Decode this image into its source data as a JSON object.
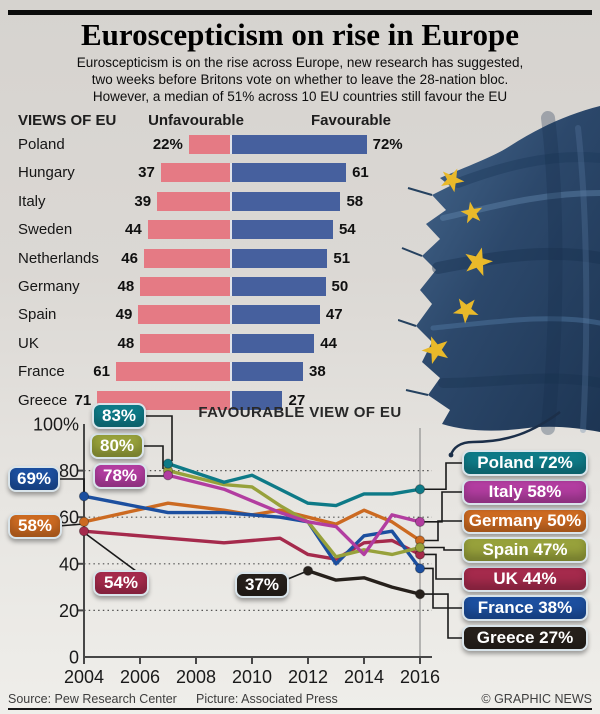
{
  "header": {
    "title": "Euroscepticism on rise in Europe",
    "intro_lines": [
      "Euroscepticism is on the rise across Europe, new research has suggested,",
      "two weeks before Britons vote on whether to leave the 28-nation bloc.",
      "However, a median of 51% across 10 EU countries still favour the EU"
    ]
  },
  "chart_data": [
    {
      "type": "bar",
      "heading": "VIEWS OF EU",
      "col_unfavourable": "Unfavourable",
      "col_favourable": "Favourable",
      "orientation": "diverging-horizontal",
      "unfavourable_color": "#e57a84",
      "favourable_color": "#46609e",
      "categories": [
        "Poland",
        "Hungary",
        "Italy",
        "Sweden",
        "Netherlands",
        "Germany",
        "Spain",
        "UK",
        "France",
        "Greece"
      ],
      "rows": [
        {
          "country": "Poland",
          "unfavourable": 22,
          "favourable": 72,
          "unfavourable_label": "22%",
          "favourable_label": "72%"
        },
        {
          "country": "Hungary",
          "unfavourable": 37,
          "favourable": 61,
          "unfavourable_label": "37",
          "favourable_label": "61"
        },
        {
          "country": "Italy",
          "unfavourable": 39,
          "favourable": 58,
          "unfavourable_label": "39",
          "favourable_label": "58"
        },
        {
          "country": "Sweden",
          "unfavourable": 44,
          "favourable": 54,
          "unfavourable_label": "44",
          "favourable_label": "54"
        },
        {
          "country": "Netherlands",
          "unfavourable": 46,
          "favourable": 51,
          "unfavourable_label": "46",
          "favourable_label": "51"
        },
        {
          "country": "Germany",
          "unfavourable": 48,
          "favourable": 50,
          "unfavourable_label": "48",
          "favourable_label": "50"
        },
        {
          "country": "Spain",
          "unfavourable": 49,
          "favourable": 47,
          "unfavourable_label": "49",
          "favourable_label": "47"
        },
        {
          "country": "UK",
          "unfavourable": 48,
          "favourable": 44,
          "unfavourable_label": "48",
          "favourable_label": "44"
        },
        {
          "country": "France",
          "unfavourable": 61,
          "favourable": 38,
          "unfavourable_label": "61",
          "favourable_label": "38"
        },
        {
          "country": "Greece",
          "unfavourable": 71,
          "favourable": 27,
          "unfavourable_label": "71",
          "favourable_label": "27"
        }
      ]
    },
    {
      "type": "line",
      "title": "FAVOURABLE VIEW OF EU",
      "xlabel": "",
      "ylabel": "",
      "x_ticks": [
        2004,
        2006,
        2008,
        2010,
        2012,
        2014,
        2016
      ],
      "xlim": [
        2004,
        2016
      ],
      "ylim": [
        0,
        100
      ],
      "y_ticks": [
        0,
        20,
        40,
        60,
        80,
        100
      ],
      "y_tick_labels": [
        "0",
        "20",
        "40",
        "60",
        "80",
        "100%"
      ],
      "grid": "dotted-horizontal-20-40-60-80",
      "legend_position": "callouts-left-and-right",
      "series": [
        {
          "name": "UK",
          "color": "#a52a4c",
          "start_label": "54%",
          "end_label": "UK 44%",
          "points": [
            [
              2004,
              54
            ],
            [
              2007,
              51
            ],
            [
              2009,
              49
            ],
            [
              2010,
              50
            ],
            [
              2011,
              51
            ],
            [
              2012,
              44
            ],
            [
              2013,
              42
            ],
            [
              2014,
              49
            ],
            [
              2015,
              50
            ],
            [
              2016,
              44
            ]
          ]
        },
        {
          "name": "Germany",
          "color": "#cc6a21",
          "start_label": "58%",
          "end_label": "Germany 50%",
          "points": [
            [
              2004,
              58
            ],
            [
              2007,
              66
            ],
            [
              2009,
              63
            ],
            [
              2010,
              61
            ],
            [
              2011,
              63
            ],
            [
              2012,
              60
            ],
            [
              2013,
              57
            ],
            [
              2014,
              63
            ],
            [
              2015,
              58
            ],
            [
              2016,
              50
            ]
          ]
        },
        {
          "name": "France",
          "color": "#1c4f9f",
          "start_label": "69%",
          "end_label": "France 38%",
          "points": [
            [
              2004,
              69
            ],
            [
              2007,
              62
            ],
            [
              2009,
              62
            ],
            [
              2010,
              61
            ],
            [
              2011,
              60
            ],
            [
              2012,
              58
            ],
            [
              2013,
              40
            ],
            [
              2014,
              52
            ],
            [
              2015,
              54
            ],
            [
              2016,
              38
            ]
          ]
        },
        {
          "name": "Spain",
          "color": "#97a13b",
          "start_label": "80%",
          "end_label": "Spain 47%",
          "points": [
            [
              2007,
              80
            ],
            [
              2009,
              74
            ],
            [
              2010,
              73
            ],
            [
              2011,
              65
            ],
            [
              2012,
              58
            ],
            [
              2013,
              43
            ],
            [
              2014,
              46
            ],
            [
              2015,
              44
            ],
            [
              2016,
              47
            ]
          ]
        },
        {
          "name": "Italy",
          "color": "#b23da0",
          "start_label": "78%",
          "end_label": "Italy 58%",
          "points": [
            [
              2007,
              78
            ],
            [
              2009,
              72
            ],
            [
              2010,
              67
            ],
            [
              2011,
              62
            ],
            [
              2012,
              58
            ],
            [
              2013,
              56
            ],
            [
              2014,
              44
            ],
            [
              2015,
              61
            ],
            [
              2016,
              58
            ]
          ]
        },
        {
          "name": "Poland",
          "color": "#0e7a87",
          "start_label": "83%",
          "end_label": "Poland 72%",
          "points": [
            [
              2007,
              83
            ],
            [
              2009,
              75
            ],
            [
              2010,
              78
            ],
            [
              2011,
              72
            ],
            [
              2012,
              66
            ],
            [
              2013,
              65
            ],
            [
              2014,
              70
            ],
            [
              2015,
              70
            ],
            [
              2016,
              72
            ]
          ]
        },
        {
          "name": "Greece",
          "color": "#26201b",
          "start_label": "37%",
          "end_label": "Greece 27%",
          "points": [
            [
              2012,
              37
            ],
            [
              2013,
              33
            ],
            [
              2014,
              34
            ],
            [
              2015,
              30
            ],
            [
              2016,
              27
            ]
          ]
        }
      ]
    }
  ],
  "footer": {
    "source": "Source: Pew Research Center",
    "picture": "Picture: Associated Press",
    "copyright": "© GRAPHIC NEWS"
  }
}
